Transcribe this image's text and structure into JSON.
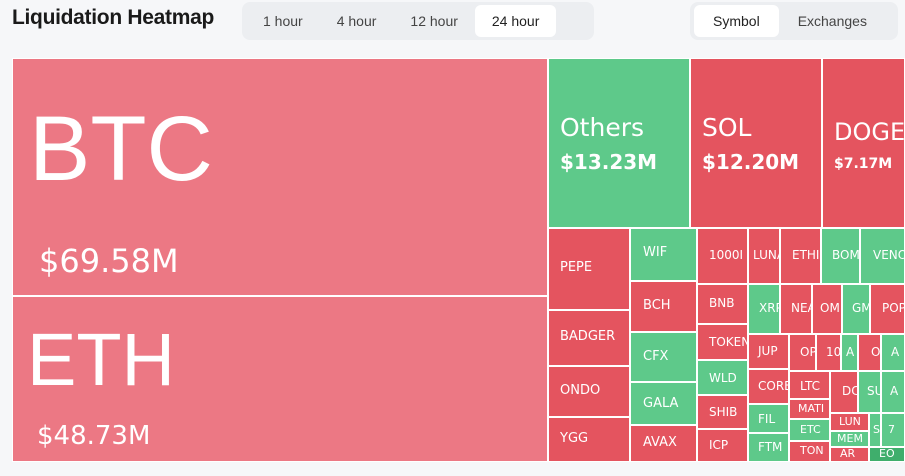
{
  "header": {
    "title": "Liquidation Heatmap"
  },
  "time_tabs": [
    {
      "label": "1 hour",
      "active": false
    },
    {
      "label": "4 hour",
      "active": false
    },
    {
      "label": "12 hour",
      "active": false
    },
    {
      "label": "24 hour",
      "active": true
    }
  ],
  "view_tabs": [
    {
      "label": "Symbol",
      "active": true
    },
    {
      "label": "Exchanges",
      "active": false
    }
  ],
  "tiles": [
    {
      "label": "BTC",
      "value": "$69.58M",
      "color": "#ec7884"
    },
    {
      "label": "ETH",
      "value": "$48.73M",
      "color": "#ec7884"
    },
    {
      "label": "Others",
      "value": "$13.23M",
      "color": "#5ec98a"
    },
    {
      "label": "SOL",
      "value": "$12.20M",
      "color": "#e4545f"
    },
    {
      "label": "DOGE",
      "value": "$7.17M",
      "color": "#e4545f"
    },
    {
      "label": "PEPE",
      "color": "#e4545f"
    },
    {
      "label": "BADGER",
      "color": "#e4545f"
    },
    {
      "label": "ONDO",
      "color": "#e4545f"
    },
    {
      "label": "YGG",
      "color": "#e4545f"
    },
    {
      "label": "WIF",
      "color": "#5ec98a"
    },
    {
      "label": "BCH",
      "color": "#e4545f"
    },
    {
      "label": "CFX",
      "color": "#5ec98a"
    },
    {
      "label": "GALA",
      "color": "#5ec98a"
    },
    {
      "label": "AVAX",
      "color": "#e4545f"
    },
    {
      "label": "1000I",
      "color": "#e4545f"
    },
    {
      "label": "LUNA",
      "color": "#e4545f"
    },
    {
      "label": "ETHI",
      "color": "#e4545f"
    },
    {
      "label": "BOM",
      "color": "#5ec98a"
    },
    {
      "label": "VENO",
      "color": "#5ec98a"
    },
    {
      "label": "BNB",
      "color": "#e4545f"
    },
    {
      "label": "TOKEN",
      "color": "#e4545f"
    },
    {
      "label": "WLD",
      "color": "#5ec98a"
    },
    {
      "label": "SHIB",
      "color": "#e4545f"
    },
    {
      "label": "ICP",
      "color": "#e4545f"
    },
    {
      "label": "XRP",
      "color": "#5ec98a"
    },
    {
      "label": "NEA",
      "color": "#e4545f"
    },
    {
      "label": "OM",
      "color": "#e4545f"
    },
    {
      "label": "GM",
      "color": "#5ec98a"
    },
    {
      "label": "POP",
      "color": "#e4545f"
    },
    {
      "label": "JUP",
      "color": "#e4545f"
    },
    {
      "label": "CORE",
      "color": "#e4545f"
    },
    {
      "label": "FIL",
      "color": "#5ec98a"
    },
    {
      "label": "FTM",
      "color": "#5ec98a"
    },
    {
      "label": "OP",
      "color": "#e4545f"
    },
    {
      "label": "10",
      "color": "#e4545f"
    },
    {
      "label": "A",
      "color": "#5ec98a"
    },
    {
      "label": "O",
      "color": "#e4545f"
    },
    {
      "label": "A",
      "color": "#5ec98a"
    },
    {
      "label": "LTC",
      "color": "#e4545f"
    },
    {
      "label": "MATI",
      "color": "#e4545f"
    },
    {
      "label": "ETC",
      "color": "#5ec98a"
    },
    {
      "label": "TON",
      "color": "#e4545f"
    },
    {
      "label": "DC",
      "color": "#e4545f"
    },
    {
      "label": "SU",
      "color": "#5ec98a"
    },
    {
      "label": "A",
      "color": "#5ec98a"
    },
    {
      "label": "LUN",
      "color": "#e4545f"
    },
    {
      "label": "MEM",
      "color": "#5ec98a"
    },
    {
      "label": "AR",
      "color": "#e4545f"
    },
    {
      "label": "S",
      "color": "#5ec98a"
    },
    {
      "label": "EO",
      "color": "#3fae6c"
    },
    {
      "label": "7",
      "color": "#5ec98a"
    }
  ]
}
